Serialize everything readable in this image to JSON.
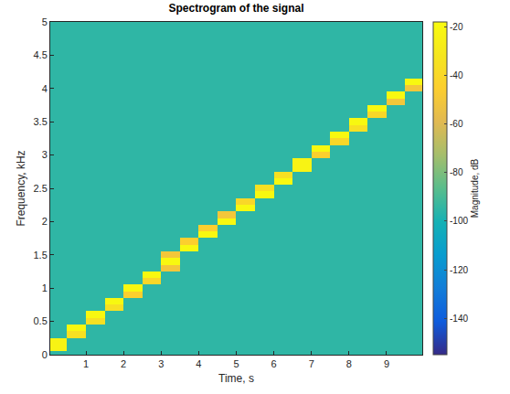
{
  "chart_data": {
    "type": "heatmap",
    "title": "Spectrogram of the signal",
    "xlabel": "Time, s",
    "ylabel": "Frequency, kHz",
    "colorbar_label": "Magnitude, dB",
    "x": [
      0.25,
      0.75,
      1.25,
      1.75,
      2.25,
      2.75,
      3.25,
      3.75,
      4.25,
      4.75,
      5.25,
      5.75,
      6.25,
      6.75,
      7.25,
      7.75,
      8.25,
      8.75,
      9.25,
      9.75
    ],
    "y": [
      0,
      0.1,
      0.2,
      0.3,
      0.4,
      0.5,
      0.6,
      0.7,
      0.8,
      0.9,
      1,
      1.1,
      1.2,
      1.3,
      1.4,
      1.5,
      1.6,
      1.7,
      1.8,
      1.9,
      2,
      2.1,
      2.2,
      2.3,
      2.4,
      2.5,
      2.6,
      2.7,
      2.8,
      2.9,
      3,
      3.1,
      3.2,
      3.3,
      3.4,
      3.5,
      3.6,
      3.7,
      3.8,
      3.9,
      4,
      4.1,
      4.2,
      4.3,
      4.4,
      4.5,
      4.6,
      4.7,
      4.8,
      4.9,
      5
    ],
    "z": [
      [
        -95,
        -95,
        -95,
        -95,
        -95,
        -95,
        -95,
        -95,
        -95,
        -95,
        -95,
        -95,
        -95,
        -95,
        -95,
        -95,
        -95,
        -95,
        -95,
        -95
      ],
      [
        -23,
        -95,
        -95,
        -95,
        -95,
        -95,
        -95,
        -95,
        -95,
        -95,
        -95,
        -95,
        -95,
        -95,
        -95,
        -95,
        -95,
        -95,
        -95,
        -95
      ],
      [
        -23,
        -95,
        -95,
        -95,
        -95,
        -95,
        -95,
        -95,
        -95,
        -95,
        -95,
        -95,
        -95,
        -95,
        -95,
        -95,
        -95,
        -95,
        -95,
        -95
      ],
      [
        -95,
        -35,
        -95,
        -95,
        -95,
        -95,
        -95,
        -95,
        -95,
        -95,
        -95,
        -95,
        -95,
        -95,
        -95,
        -95,
        -95,
        -95,
        -95,
        -95
      ],
      [
        -95,
        -20,
        -95,
        -95,
        -95,
        -95,
        -95,
        -95,
        -95,
        -95,
        -95,
        -95,
        -95,
        -95,
        -95,
        -95,
        -95,
        -95,
        -95,
        -95
      ],
      [
        -95,
        -95,
        -35,
        -95,
        -95,
        -95,
        -95,
        -95,
        -95,
        -95,
        -95,
        -95,
        -95,
        -95,
        -95,
        -95,
        -95,
        -95,
        -95,
        -95
      ],
      [
        -95,
        -95,
        -20,
        -95,
        -95,
        -95,
        -95,
        -95,
        -95,
        -95,
        -95,
        -95,
        -95,
        -95,
        -95,
        -95,
        -95,
        -95,
        -95,
        -95
      ],
      [
        -95,
        -95,
        -95,
        -35,
        -95,
        -95,
        -95,
        -95,
        -95,
        -95,
        -95,
        -95,
        -95,
        -95,
        -95,
        -95,
        -95,
        -95,
        -95,
        -95
      ],
      [
        -95,
        -95,
        -95,
        -20,
        -95,
        -95,
        -95,
        -95,
        -95,
        -95,
        -95,
        -95,
        -95,
        -95,
        -95,
        -95,
        -95,
        -95,
        -95,
        -95
      ],
      [
        -95,
        -95,
        -95,
        -95,
        -45,
        -95,
        -95,
        -95,
        -95,
        -95,
        -95,
        -95,
        -95,
        -95,
        -95,
        -95,
        -95,
        -95,
        -95,
        -95
      ],
      [
        -95,
        -95,
        -95,
        -95,
        -20,
        -95,
        -95,
        -95,
        -95,
        -95,
        -95,
        -95,
        -95,
        -95,
        -95,
        -95,
        -95,
        -95,
        -95,
        -95
      ],
      [
        -95,
        -95,
        -95,
        -95,
        -95,
        -40,
        -95,
        -95,
        -95,
        -95,
        -95,
        -95,
        -95,
        -95,
        -95,
        -95,
        -95,
        -95,
        -95,
        -95
      ],
      [
        -95,
        -95,
        -95,
        -95,
        -95,
        -20,
        -95,
        -95,
        -95,
        -95,
        -95,
        -95,
        -95,
        -95,
        -95,
        -95,
        -95,
        -95,
        -95,
        -95
      ],
      [
        -95,
        -95,
        -95,
        -95,
        -95,
        -95,
        -50,
        -95,
        -95,
        -95,
        -95,
        -95,
        -95,
        -95,
        -95,
        -95,
        -95,
        -95,
        -95,
        -95
      ],
      [
        -95,
        -95,
        -95,
        -95,
        -95,
        -95,
        -20,
        -95,
        -95,
        -95,
        -95,
        -95,
        -95,
        -95,
        -95,
        -95,
        -95,
        -95,
        -95,
        -95
      ],
      [
        -95,
        -95,
        -95,
        -95,
        -95,
        -95,
        -50,
        -95,
        -95,
        -95,
        -95,
        -95,
        -95,
        -95,
        -95,
        -95,
        -95,
        -95,
        -95,
        -95
      ],
      [
        -95,
        -95,
        -95,
        -95,
        -95,
        -95,
        -95,
        -20,
        -95,
        -95,
        -95,
        -95,
        -95,
        -95,
        -95,
        -95,
        -95,
        -95,
        -95,
        -95
      ],
      [
        -95,
        -95,
        -95,
        -95,
        -95,
        -95,
        -95,
        -45,
        -95,
        -95,
        -95,
        -95,
        -95,
        -95,
        -95,
        -95,
        -95,
        -95,
        -95,
        -95
      ],
      [
        -95,
        -95,
        -95,
        -95,
        -95,
        -95,
        -95,
        -95,
        -20,
        -95,
        -95,
        -95,
        -95,
        -95,
        -95,
        -95,
        -95,
        -95,
        -95,
        -95
      ],
      [
        -95,
        -95,
        -95,
        -95,
        -95,
        -95,
        -95,
        -95,
        -45,
        -95,
        -95,
        -95,
        -95,
        -95,
        -95,
        -95,
        -95,
        -95,
        -95,
        -95
      ],
      [
        -95,
        -95,
        -95,
        -95,
        -95,
        -95,
        -95,
        -95,
        -95,
        -20,
        -95,
        -95,
        -95,
        -95,
        -95,
        -95,
        -95,
        -95,
        -95,
        -95
      ],
      [
        -95,
        -95,
        -95,
        -95,
        -95,
        -95,
        -95,
        -95,
        -95,
        -50,
        -95,
        -95,
        -95,
        -95,
        -95,
        -95,
        -95,
        -95,
        -95,
        -95
      ],
      [
        -95,
        -95,
        -95,
        -95,
        -95,
        -95,
        -95,
        -95,
        -95,
        -95,
        -20,
        -95,
        -95,
        -95,
        -95,
        -95,
        -95,
        -95,
        -95,
        -95
      ],
      [
        -95,
        -95,
        -95,
        -95,
        -95,
        -95,
        -95,
        -95,
        -95,
        -95,
        -40,
        -95,
        -95,
        -95,
        -95,
        -95,
        -95,
        -95,
        -95,
        -95
      ],
      [
        -95,
        -95,
        -95,
        -95,
        -95,
        -95,
        -95,
        -95,
        -95,
        -95,
        -95,
        -20,
        -95,
        -95,
        -95,
        -95,
        -95,
        -95,
        -95,
        -95
      ],
      [
        -95,
        -95,
        -95,
        -95,
        -95,
        -95,
        -95,
        -95,
        -95,
        -95,
        -95,
        -35,
        -95,
        -95,
        -95,
        -95,
        -95,
        -95,
        -95,
        -95
      ],
      [
        -95,
        -95,
        -95,
        -95,
        -95,
        -95,
        -95,
        -95,
        -95,
        -95,
        -95,
        -95,
        -20,
        -95,
        -95,
        -95,
        -95,
        -95,
        -95,
        -95
      ],
      [
        -95,
        -95,
        -95,
        -95,
        -95,
        -95,
        -95,
        -95,
        -95,
        -95,
        -95,
        -95,
        -35,
        -95,
        -95,
        -95,
        -95,
        -95,
        -95,
        -95
      ],
      [
        -95,
        -95,
        -95,
        -95,
        -95,
        -95,
        -95,
        -95,
        -95,
        -95,
        -95,
        -95,
        -95,
        -23,
        -95,
        -95,
        -95,
        -95,
        -95,
        -95
      ],
      [
        -95,
        -95,
        -95,
        -95,
        -95,
        -95,
        -95,
        -95,
        -95,
        -95,
        -95,
        -95,
        -95,
        -23,
        -95,
        -95,
        -95,
        -95,
        -95,
        -95
      ],
      [
        -95,
        -95,
        -95,
        -95,
        -95,
        -95,
        -95,
        -95,
        -95,
        -95,
        -95,
        -95,
        -95,
        -95,
        -45,
        -95,
        -95,
        -95,
        -95,
        -95
      ],
      [
        -95,
        -95,
        -95,
        -95,
        -95,
        -95,
        -95,
        -95,
        -95,
        -95,
        -95,
        -95,
        -95,
        -95,
        -20,
        -95,
        -95,
        -95,
        -95,
        -95
      ],
      [
        -95,
        -95,
        -95,
        -95,
        -95,
        -95,
        -95,
        -95,
        -95,
        -95,
        -95,
        -95,
        -95,
        -95,
        -95,
        -40,
        -95,
        -95,
        -95,
        -95
      ],
      [
        -95,
        -95,
        -95,
        -95,
        -95,
        -95,
        -95,
        -95,
        -95,
        -95,
        -95,
        -95,
        -95,
        -95,
        -95,
        -20,
        -95,
        -95,
        -95,
        -95
      ],
      [
        -95,
        -95,
        -95,
        -95,
        -95,
        -95,
        -95,
        -95,
        -95,
        -95,
        -95,
        -95,
        -95,
        -95,
        -95,
        -95,
        -35,
        -95,
        -95,
        -95
      ],
      [
        -95,
        -95,
        -95,
        -95,
        -95,
        -95,
        -95,
        -95,
        -95,
        -95,
        -95,
        -95,
        -95,
        -95,
        -95,
        -95,
        -20,
        -95,
        -95,
        -95
      ],
      [
        -95,
        -95,
        -95,
        -95,
        -95,
        -95,
        -95,
        -95,
        -95,
        -95,
        -95,
        -95,
        -95,
        -95,
        -95,
        -95,
        -95,
        -40,
        -95,
        -95
      ],
      [
        -95,
        -95,
        -95,
        -95,
        -95,
        -95,
        -95,
        -95,
        -95,
        -95,
        -95,
        -95,
        -95,
        -95,
        -95,
        -95,
        -95,
        -20,
        -95,
        -95
      ],
      [
        -95,
        -95,
        -95,
        -95,
        -95,
        -95,
        -95,
        -95,
        -95,
        -95,
        -95,
        -95,
        -95,
        -95,
        -95,
        -95,
        -95,
        -95,
        -50,
        -95
      ],
      [
        -95,
        -95,
        -95,
        -95,
        -95,
        -95,
        -95,
        -95,
        -95,
        -95,
        -95,
        -95,
        -95,
        -95,
        -95,
        -95,
        -95,
        -95,
        -20,
        -95
      ],
      [
        -95,
        -95,
        -95,
        -95,
        -95,
        -95,
        -95,
        -95,
        -95,
        -95,
        -95,
        -95,
        -95,
        -95,
        -95,
        -95,
        -95,
        -95,
        -95,
        -50
      ],
      [
        -95,
        -95,
        -95,
        -95,
        -95,
        -95,
        -95,
        -95,
        -95,
        -95,
        -95,
        -95,
        -95,
        -95,
        -95,
        -95,
        -95,
        -95,
        -95,
        -20
      ],
      [
        -95,
        -95,
        -95,
        -95,
        -95,
        -95,
        -95,
        -95,
        -95,
        -95,
        -95,
        -95,
        -95,
        -95,
        -95,
        -95,
        -95,
        -95,
        -95,
        -95
      ],
      [
        -95,
        -95,
        -95,
        -95,
        -95,
        -95,
        -95,
        -95,
        -95,
        -95,
        -95,
        -95,
        -95,
        -95,
        -95,
        -95,
        -95,
        -95,
        -95,
        -95
      ],
      [
        -95,
        -95,
        -95,
        -95,
        -95,
        -95,
        -95,
        -95,
        -95,
        -95,
        -95,
        -95,
        -95,
        -95,
        -95,
        -95,
        -95,
        -95,
        -95,
        -95
      ],
      [
        -95,
        -95,
        -95,
        -95,
        -95,
        -95,
        -95,
        -95,
        -95,
        -95,
        -95,
        -95,
        -95,
        -95,
        -95,
        -95,
        -95,
        -95,
        -95,
        -95
      ],
      [
        -95,
        -95,
        -95,
        -95,
        -95,
        -95,
        -95,
        -95,
        -95,
        -95,
        -95,
        -95,
        -95,
        -95,
        -95,
        -95,
        -95,
        -95,
        -95,
        -95
      ],
      [
        -95,
        -95,
        -95,
        -95,
        -95,
        -95,
        -95,
        -95,
        -95,
        -95,
        -95,
        -95,
        -95,
        -95,
        -95,
        -95,
        -95,
        -95,
        -95,
        -95
      ],
      [
        -95,
        -95,
        -95,
        -95,
        -95,
        -95,
        -95,
        -95,
        -95,
        -95,
        -95,
        -95,
        -95,
        -95,
        -95,
        -95,
        -95,
        -95,
        -95,
        -95
      ],
      [
        -95,
        -95,
        -95,
        -95,
        -95,
        -95,
        -95,
        -95,
        -95,
        -95,
        -95,
        -95,
        -95,
        -95,
        -95,
        -95,
        -95,
        -95,
        -95,
        -95
      ],
      [
        -95,
        -95,
        -95,
        -95,
        -95,
        -95,
        -95,
        -95,
        -95,
        -95,
        -95,
        -95,
        -95,
        -95,
        -95,
        -95,
        -95,
        -95,
        -95,
        -95
      ]
    ],
    "xlim": [
      0.05,
      9.95
    ],
    "xticks": [
      1,
      2,
      3,
      4,
      5,
      6,
      7,
      8,
      9
    ],
    "ylim": [
      0,
      5
    ],
    "yticks": [
      0,
      0.5,
      1,
      1.5,
      2,
      2.5,
      3,
      3.5,
      4,
      4.5,
      5
    ],
    "zlim": [
      -155,
      -18
    ],
    "zticks": [
      -140,
      -120,
      -100,
      -80,
      -60,
      -40,
      -20
    ]
  }
}
